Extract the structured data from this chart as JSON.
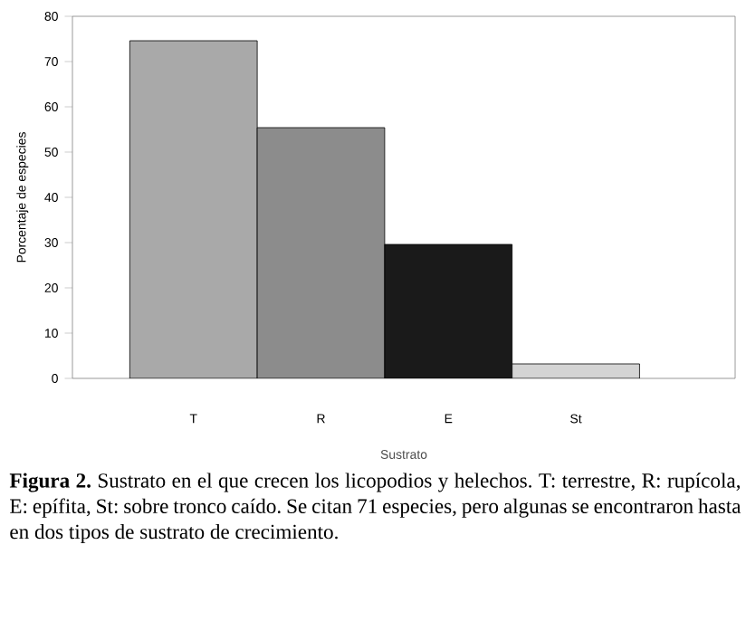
{
  "chart_data": {
    "type": "bar",
    "xlabel": "Sustrato",
    "ylabel": "Porcentaje de especies",
    "categories": [
      "T",
      "R",
      "E",
      "St"
    ],
    "values": [
      74.6,
      55.4,
      29.6,
      3.2
    ],
    "colors": [
      "#a9a9a9",
      "#8c8c8c",
      "#1a1a1a",
      "#d4d4d4"
    ],
    "ylim": [
      0,
      80
    ],
    "yticks": [
      0,
      10,
      20,
      30,
      40,
      50,
      60,
      70,
      80
    ],
    "annotations": [
      "**Figura 2.** Sustrato en el que crecen los licopodios y helechos. T: terrestre, R: rupícola, E: epífita, St: sobre tronco caído. Se citan 71 especies, pero algunas se encontraron hasta en dos tipos de sustrato de crecimiento."
    ]
  }
}
